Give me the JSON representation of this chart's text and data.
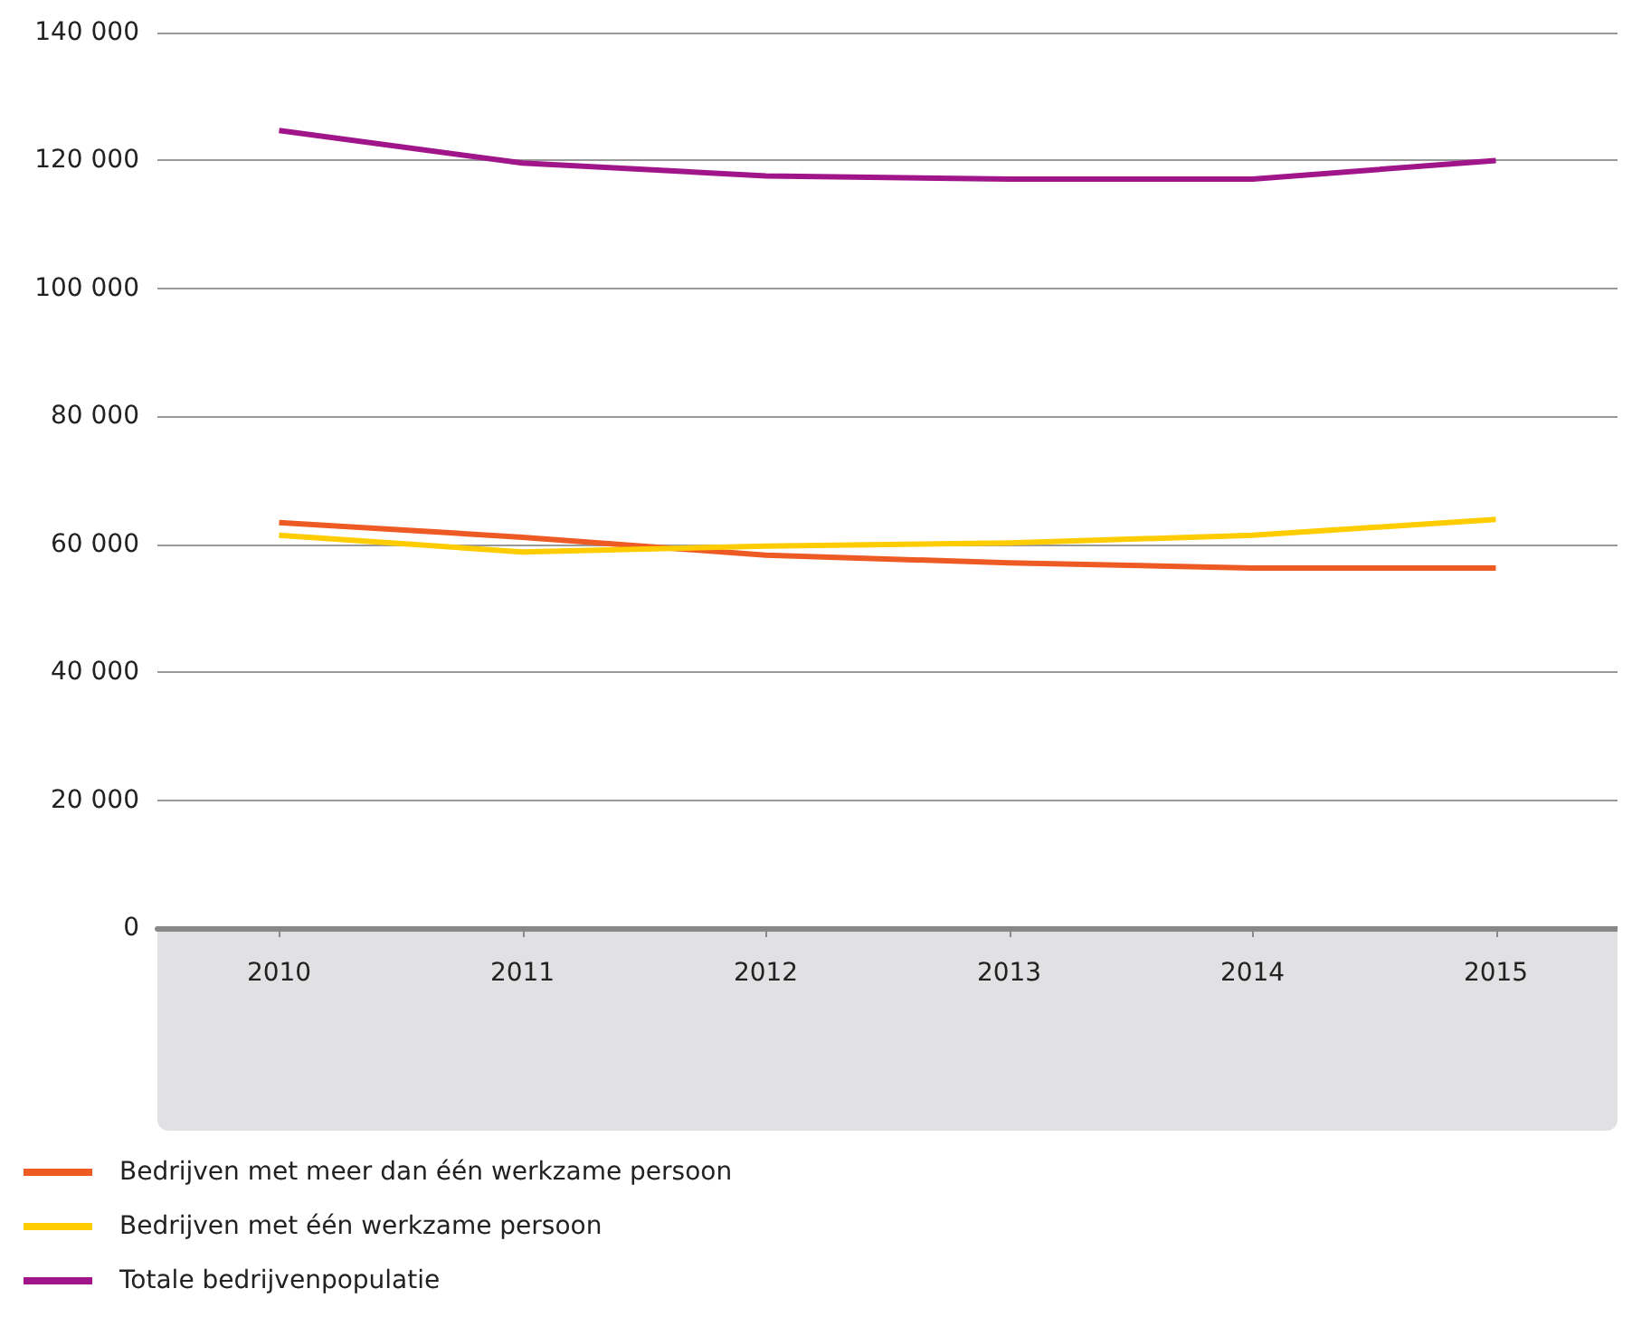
{
  "chart_data": {
    "type": "line",
    "categories": [
      "2010",
      "2011",
      "2012",
      "2013",
      "2014",
      "2015"
    ],
    "series": [
      {
        "name": "Bedrijven met meer dan één werkzame persoon",
        "color": "#ee5a24",
        "values": [
          63400,
          61100,
          58300,
          57100,
          56300,
          56300
        ]
      },
      {
        "name": "Bedrijven met één werkzame persoon",
        "color": "#ffcc00",
        "values": [
          61400,
          58800,
          59700,
          60200,
          61400,
          63900
        ]
      },
      {
        "name": "Totale bedrijvenpopulatie",
        "color": "#a0168a",
        "values": [
          124700,
          119600,
          117600,
          117100,
          117100,
          120000
        ]
      }
    ],
    "ylim": [
      0,
      140000
    ],
    "yticks": [
      {
        "value": 0,
        "label": "0"
      },
      {
        "value": 20000,
        "label": "20 000"
      },
      {
        "value": 40000,
        "label": "40 000"
      },
      {
        "value": 60000,
        "label": "60 000"
      },
      {
        "value": 80000,
        "label": "80 000"
      },
      {
        "value": 100000,
        "label": "100 000"
      },
      {
        "value": 120000,
        "label": "120 000"
      },
      {
        "value": 140000,
        "label": "140 000"
      }
    ],
    "grid": "y",
    "legend": "bottom left",
    "marker": "none"
  }
}
